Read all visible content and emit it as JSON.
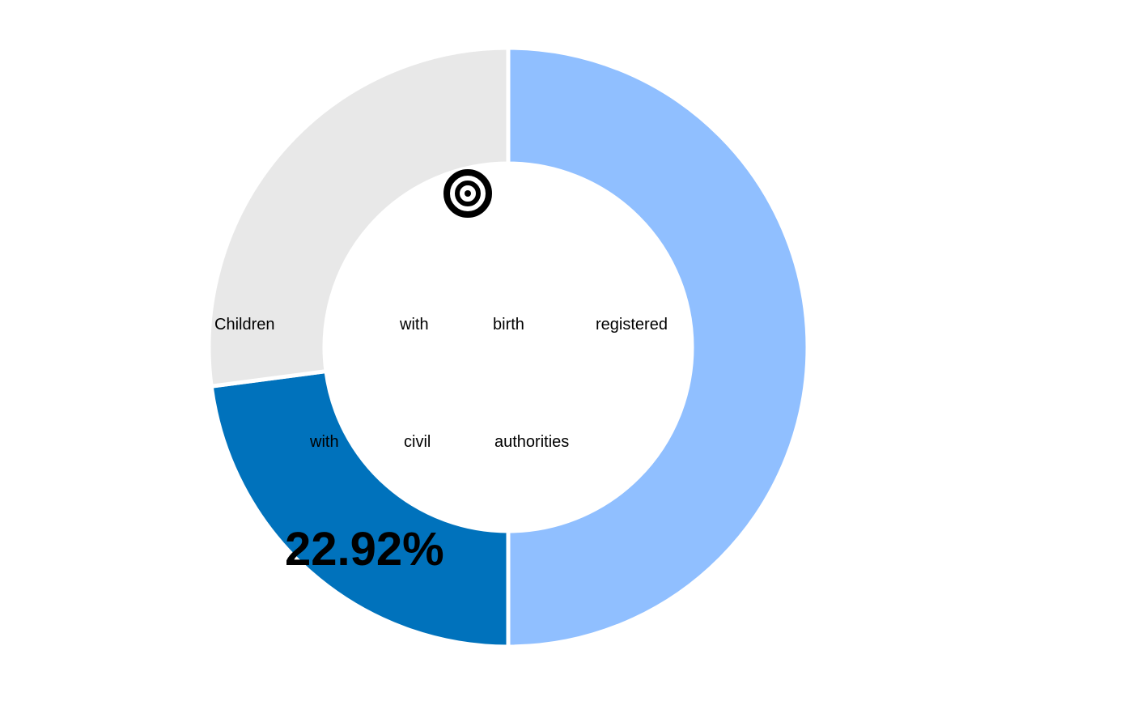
{
  "chart_data": {
    "type": "pie",
    "variant": "donut",
    "slices": [
      {
        "value": 50.0,
        "color": "#90bfff"
      },
      {
        "value": 22.92,
        "color": "#0072bc"
      },
      {
        "value": 27.08,
        "color": "#e8e8e8"
      }
    ],
    "caption": "Children with birth registered with civil authorities",
    "caption_words": [
      "Children",
      "with",
      "birth",
      "registered",
      "with",
      "civil",
      "authorities"
    ],
    "value_label": "22.92%",
    "icon": "target-icon"
  }
}
